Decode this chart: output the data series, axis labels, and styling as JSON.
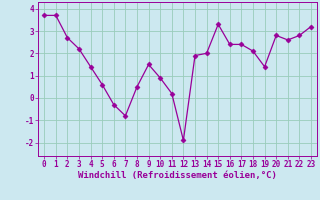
{
  "x": [
    0,
    1,
    2,
    3,
    4,
    5,
    6,
    7,
    8,
    9,
    10,
    11,
    12,
    13,
    14,
    15,
    16,
    17,
    18,
    19,
    20,
    21,
    22,
    23
  ],
  "y": [
    3.7,
    3.7,
    2.7,
    2.2,
    1.4,
    0.6,
    -0.3,
    -0.8,
    0.5,
    1.5,
    0.9,
    0.2,
    -1.9,
    1.9,
    2.0,
    3.3,
    2.4,
    2.4,
    2.1,
    1.4,
    2.8,
    2.6,
    2.8,
    3.2
  ],
  "line_color": "#990099",
  "marker": "D",
  "markersize": 2.5,
  "linewidth": 0.9,
  "xlabel": "Windchill (Refroidissement éolien,°C)",
  "xlabel_fontsize": 6.5,
  "xtick_labels": [
    "0",
    "1",
    "2",
    "3",
    "4",
    "5",
    "6",
    "7",
    "8",
    "9",
    "10",
    "11",
    "12",
    "13",
    "14",
    "15",
    "16",
    "17",
    "18",
    "19",
    "20",
    "21",
    "22",
    "23"
  ],
  "ytick_values": [
    -2,
    -1,
    0,
    1,
    2,
    3,
    4
  ],
  "ylim": [
    -2.6,
    4.3
  ],
  "xlim": [
    -0.5,
    23.5
  ],
  "background_color": "#cce8f0",
  "grid_color": "#99ccbb",
  "tick_fontsize": 5.5,
  "tick_color": "#990099",
  "label_color": "#990099"
}
